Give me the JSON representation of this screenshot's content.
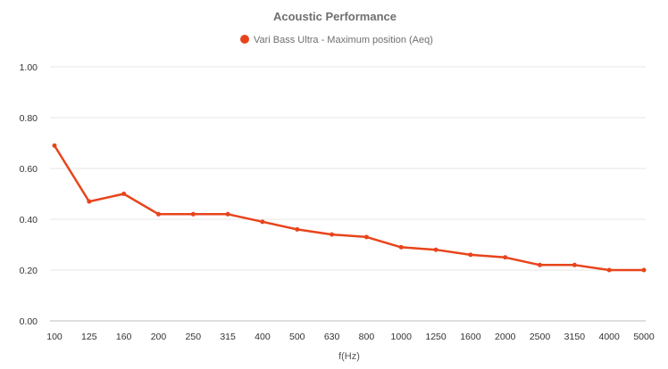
{
  "chart_data": {
    "type": "line",
    "title": "Acoustic Performance",
    "xlabel": "f(Hz)",
    "ylabel": "",
    "categories": [
      "100",
      "125",
      "160",
      "200",
      "250",
      "315",
      "400",
      "500",
      "630",
      "800",
      "1000",
      "1250",
      "1600",
      "2000",
      "2500",
      "3150",
      "4000",
      "5000"
    ],
    "series": [
      {
        "name": "Vari Bass Ultra - Maximum position (Aeq)",
        "color": "#e8441c",
        "values": [
          0.69,
          0.47,
          0.5,
          0.42,
          0.42,
          0.42,
          0.39,
          0.36,
          0.34,
          0.33,
          0.29,
          0.28,
          0.26,
          0.25,
          0.22,
          0.22,
          0.2,
          0.2
        ]
      }
    ],
    "ylim": [
      0,
      1
    ],
    "yticks": [
      "0.00",
      "0.20",
      "0.40",
      "0.60",
      "0.80",
      "1.00"
    ],
    "grid": true,
    "legend_position": "top-center"
  }
}
